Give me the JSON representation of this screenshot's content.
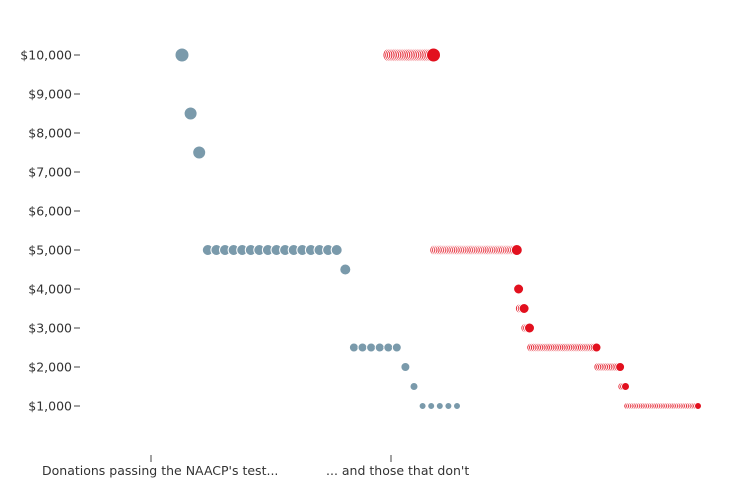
{
  "chart_data": {
    "type": "scatter",
    "title": "",
    "xlabel": "",
    "ylabel": "",
    "ylim": [
      0,
      10500
    ],
    "y_ticks": [
      {
        "value": 1000,
        "label": "$1,000"
      },
      {
        "value": 2000,
        "label": "$2,000"
      },
      {
        "value": 3000,
        "label": "$3,000"
      },
      {
        "value": 4000,
        "label": "$4,000"
      },
      {
        "value": 5000,
        "label": "$5,000"
      },
      {
        "value": 6000,
        "label": "$6,000"
      },
      {
        "value": 7000,
        "label": "$7,000"
      },
      {
        "value": 8000,
        "label": "$8,000"
      },
      {
        "value": 9000,
        "label": "$9,000"
      },
      {
        "value": 10000,
        "label": "$10,000"
      }
    ],
    "group_labels": [
      "Donations passing the NAACP's test...",
      "... and those that don't"
    ],
    "grid": false,
    "colors": {
      "pass": "#7a9aab",
      "fail": "#e2101e",
      "pass_stroke": "#ffffff",
      "fail_stroke": "#ffffff"
    },
    "series": [
      {
        "values": [
          10000,
          8500,
          7500,
          5000,
          5000,
          5000,
          5000,
          5000,
          5000,
          5000,
          5000,
          5000,
          5000,
          5000,
          5000,
          5000,
          5000,
          5000,
          5000,
          4500,
          2500,
          2500,
          2500,
          2500,
          2500,
          2500,
          2000,
          1500,
          1000,
          1000,
          1000,
          1000,
          1000
        ]
      },
      {
        "values": [
          10000,
          10000,
          10000,
          10000,
          10000,
          10000,
          10000,
          10000,
          10000,
          10000,
          10000,
          10000,
          10000,
          10000,
          10000,
          10000,
          10000,
          10000,
          10000,
          10000,
          10000,
          10000,
          10000,
          10000,
          10000,
          5000,
          5000,
          5000,
          5000,
          5000,
          5000,
          5000,
          5000,
          5000,
          5000,
          5000,
          5000,
          5000,
          5000,
          5000,
          5000,
          5000,
          5000,
          5000,
          5000,
          5000,
          5000,
          5000,
          5000,
          5000,
          5000,
          5000,
          5000,
          5000,
          5000,
          5000,
          5000,
          5000,
          5000,
          5000,
          5000,
          5000,
          5000,
          5000,
          5000,
          5000,
          5000,
          5000,
          5000,
          5000,
          5000,
          4000,
          3500,
          3500,
          3500,
          3000,
          3000,
          3000,
          2500,
          2500,
          2500,
          2500,
          2500,
          2500,
          2500,
          2500,
          2500,
          2500,
          2500,
          2500,
          2500,
          2500,
          2500,
          2500,
          2500,
          2500,
          2500,
          2500,
          2500,
          2500,
          2500,
          2500,
          2500,
          2500,
          2500,
          2500,
          2500,
          2500,
          2500,
          2500,
          2500,
          2500,
          2500,
          2500,
          2500,
          2000,
          2000,
          2000,
          2000,
          2000,
          2000,
          2000,
          2000,
          2000,
          2000,
          2000,
          2000,
          2000,
          1500,
          1500,
          1500,
          1000,
          1000,
          1000,
          1000,
          1000,
          1000,
          1000,
          1000,
          1000,
          1000,
          1000,
          1000,
          1000,
          1000,
          1000,
          1000,
          1000,
          1000,
          1000,
          1000,
          1000,
          1000,
          1000,
          1000,
          1000,
          1000,
          1000,
          1000,
          1000,
          1000,
          1000,
          1000,
          1000,
          1000,
          1000,
          1000,
          1000,
          1000,
          1000,
          1000
        ]
      }
    ]
  }
}
